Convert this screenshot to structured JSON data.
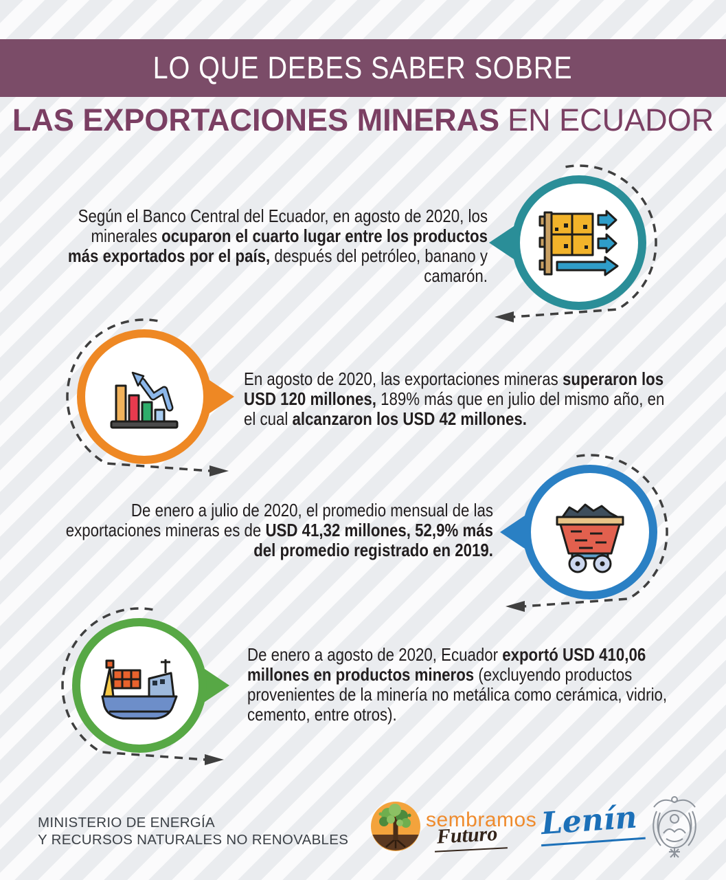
{
  "header": {
    "kicker": "LO QUE DEBES SABER SOBRE",
    "title_bold": "LAS EXPORTACIONES MINERAS",
    "title_regular": "EN ECUADOR"
  },
  "sections": [
    {
      "name": "ranking",
      "icon": "warehouse-export-icon",
      "accent": "#2a8e98",
      "runs": [
        {
          "t": "Según el Banco Central del Ecuador, en agosto de 2020, los minerales ",
          "b": false
        },
        {
          "t": "ocuparon el cuarto lugar entre los productos más exportados por el país,",
          "b": true
        },
        {
          "t": " después del petróleo, banano y camarón.",
          "b": false
        }
      ]
    },
    {
      "name": "august-record",
      "icon": "bar-chart-growth-icon",
      "accent": "#ee8824",
      "runs": [
        {
          "t": "En agosto de 2020, las exportaciones mineras ",
          "b": false
        },
        {
          "t": "superaron los USD 120 millones,",
          "b": true
        },
        {
          "t": " 189% más que en julio del mismo año, en el cual ",
          "b": false
        },
        {
          "t": "alcanzaron los USD 42 millones.",
          "b": true
        }
      ]
    },
    {
      "name": "monthly-average",
      "icon": "mine-cart-icon",
      "accent": "#2a80c4",
      "runs": [
        {
          "t": "De enero a julio de 2020, el promedio mensual de las exportaciones mineras es de ",
          "b": false
        },
        {
          "t": "USD 41,32 millones, 52,9% más del promedio registrado en 2019.",
          "b": true
        }
      ]
    },
    {
      "name": "year-total",
      "icon": "cargo-ship-icon",
      "accent": "#57a845",
      "runs": [
        {
          "t": "De enero a agosto de 2020, Ecuador ",
          "b": false
        },
        {
          "t": "exportó USD 410,06 millones en productos mineros",
          "b": true
        },
        {
          "t": " (excluyendo productos provenientes de la minería no metálica como cerámica, vidrio, cemento, entre otros).",
          "b": false
        }
      ]
    }
  ],
  "footer": {
    "ministry_line1": "MINISTERIO DE ENERGÍA",
    "ministry_line2": "Y RECURSOS NATURALES NO RENOVABLES",
    "sembramos_label": "sembramos",
    "futuro_label": "Futuro",
    "lenin_signature": "Lenín"
  },
  "colors": {
    "banner_bg": "#7b4c68",
    "title_text": "#7b3f63",
    "body_text": "#221e1f",
    "dash": "#3f3f3f",
    "teal": "#2a8e98",
    "orange": "#ee8824",
    "blue": "#2a80c4",
    "green": "#57a845",
    "sembramos_orange": "#ef8b2d",
    "futuro_brown": "#33241a",
    "lenin_blue": "#1c70b8"
  }
}
